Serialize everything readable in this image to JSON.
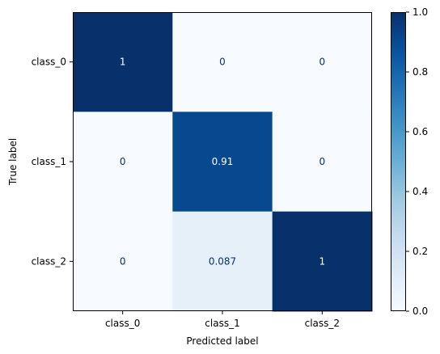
{
  "chart_data": {
    "type": "heatmap",
    "title": "",
    "xlabel": "Predicted label",
    "ylabel": "True label",
    "x_categories": [
      "class_0",
      "class_1",
      "class_2"
    ],
    "y_categories": [
      "class_0",
      "class_1",
      "class_2"
    ],
    "values": [
      [
        1,
        0,
        0
      ],
      [
        0,
        0.91,
        0
      ],
      [
        0,
        0.087,
        1
      ]
    ],
    "value_labels": [
      [
        "1",
        "0",
        "0"
      ],
      [
        "0",
        "0.91",
        "0"
      ],
      [
        "0",
        "0.087",
        "1"
      ]
    ],
    "colorbar": {
      "range": [
        0.0,
        1.0
      ],
      "ticks": [
        0.0,
        0.2,
        0.4,
        0.6,
        0.8,
        1.0
      ],
      "tick_labels": [
        "0.0",
        "0.2",
        "0.4",
        "0.6",
        "0.8",
        "1.0"
      ],
      "colormap": "Blues"
    },
    "colors": {
      "low": "#f7fbff",
      "high": "#08306b",
      "text_dark": "#08306b",
      "text_light": "#ffffff"
    },
    "grid": false,
    "legend": "colorbar-right"
  }
}
